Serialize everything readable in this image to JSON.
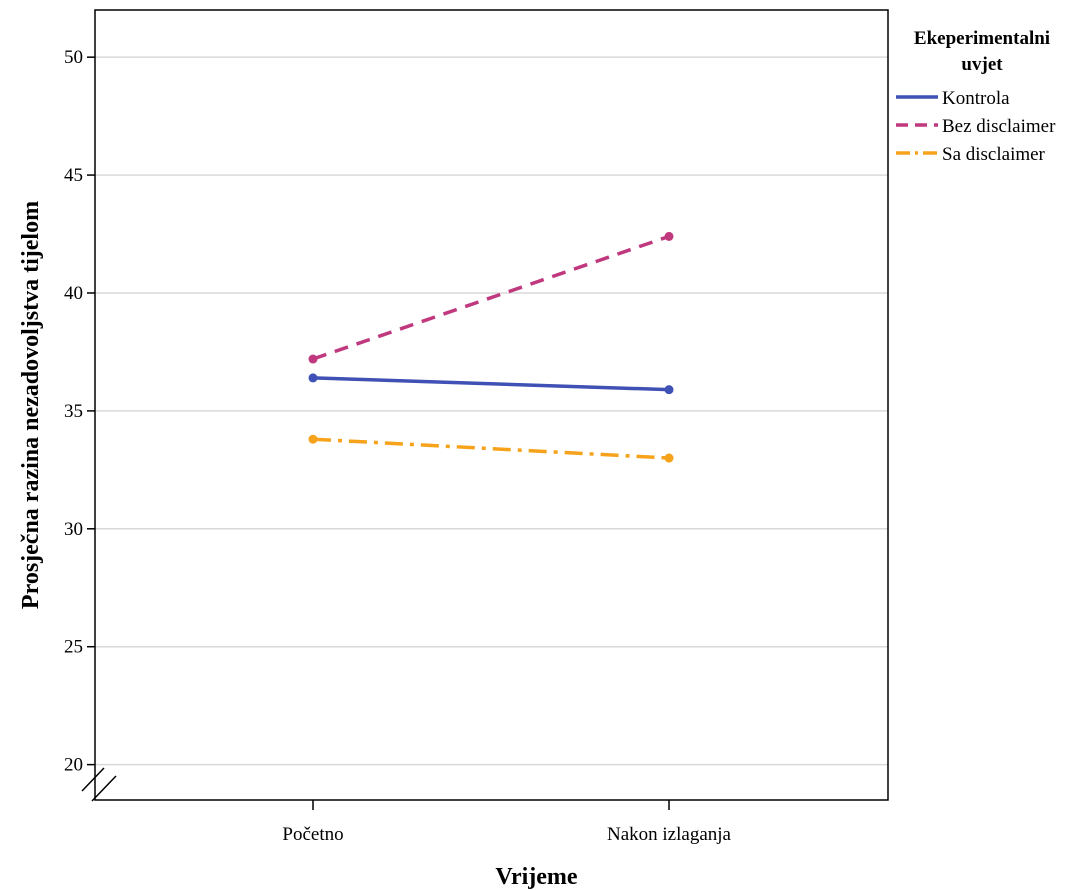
{
  "chart_data": {
    "type": "line",
    "xlabel": "Vrijeme",
    "ylabel": "Prosječna razina nezadovoljstva tijelom",
    "categories": [
      "Početno",
      "Nakon izlaganja"
    ],
    "ylim": [
      18.5,
      52
    ],
    "yticks": [
      20,
      25,
      30,
      35,
      40,
      45,
      50
    ],
    "grid": true,
    "axis_break": true,
    "legend": {
      "title_lines": [
        "Ekeperimentalni",
        "uvjet"
      ],
      "placement": "right"
    },
    "series": [
      {
        "name": "Kontrola",
        "values": [
          36.4,
          35.9
        ],
        "color": "#3f51b5",
        "dash": "solid"
      },
      {
        "name": "Bez disclaimer",
        "values": [
          37.2,
          42.4
        ],
        "color": "#c0397e",
        "dash": "dashed"
      },
      {
        "name": "Sa disclaimer",
        "values": [
          33.8,
          33.0
        ],
        "color": "#f7a21b",
        "dash": "dashdot"
      }
    ]
  }
}
